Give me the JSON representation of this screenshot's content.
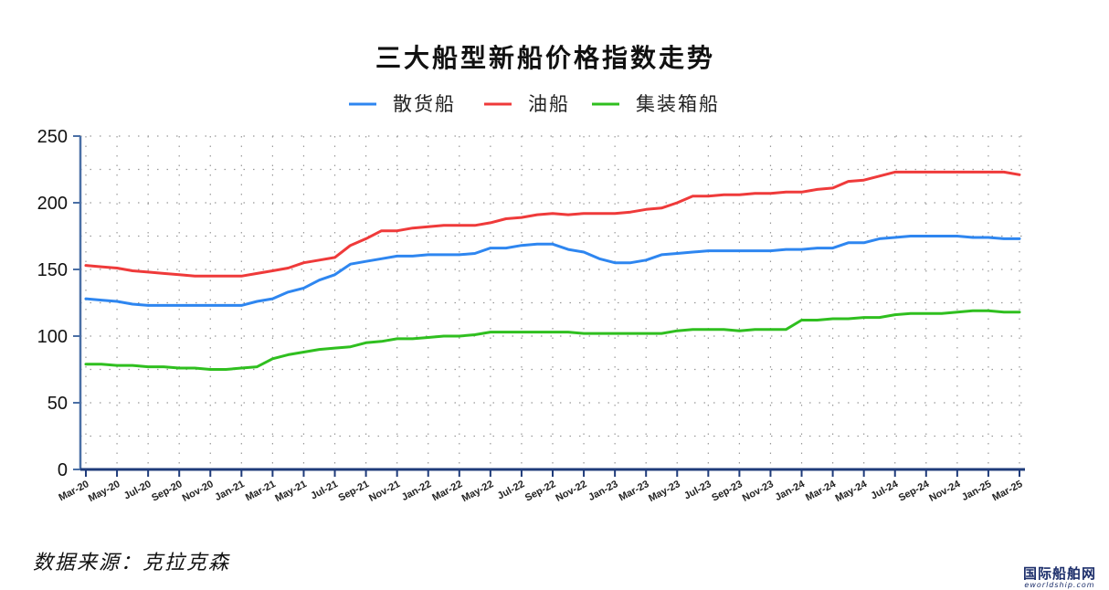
{
  "chart_data": {
    "type": "line",
    "title": "三大船型新船价格指数走势",
    "xlabel": "",
    "ylabel": "",
    "ylim": [
      0,
      250
    ],
    "yticks": [
      0,
      50,
      100,
      150,
      200,
      250
    ],
    "grid": true,
    "legend_position": "top-center",
    "x": [
      "2020-03",
      "2020-04",
      "2020-05",
      "2020-06",
      "2020-07",
      "2020-08",
      "2020-09",
      "2020-10",
      "2020-11",
      "2020-12",
      "2021-01",
      "2021-02",
      "2021-03",
      "2021-04",
      "2021-05",
      "2021-06",
      "2021-07",
      "2021-08",
      "2021-09",
      "2021-10",
      "2021-11",
      "2021-12",
      "2022-01",
      "2022-02",
      "2022-03",
      "2022-04",
      "2022-05",
      "2022-06",
      "2022-07",
      "2022-08",
      "2022-09",
      "2022-10",
      "2022-11",
      "2022-12",
      "2023-01",
      "2023-02",
      "2023-03",
      "2023-04",
      "2023-05",
      "2023-06",
      "2023-07",
      "2023-08",
      "2023-09",
      "2023-10",
      "2023-11",
      "2023-12",
      "2024-01",
      "2024-02",
      "2024-03",
      "2024-04",
      "2024-05",
      "2024-06",
      "2024-07",
      "2024-08",
      "2024-09",
      "2024-10",
      "2024-11",
      "2024-12",
      "2025-01",
      "2025-02",
      "2025-03"
    ],
    "x_tick_labels": [
      "Mar-20",
      "May-20",
      "Jul-20",
      "Sep-20",
      "Nov-20",
      "Jan-21",
      "Mar-21",
      "May-21",
      "Jul-21",
      "Sep-21",
      "Nov-21",
      "Jan-22",
      "Mar-22",
      "May-22",
      "Jul-22",
      "Sep-22",
      "Nov-22",
      "Jan-23",
      "Mar-23",
      "May-23",
      "Jul-23",
      "Sep-23",
      "Nov-23",
      "Jan-24",
      "Mar-24",
      "May-24",
      "Jul-24",
      "Sep-24",
      "Nov-24",
      "Jan-25",
      "Mar-25"
    ],
    "series": [
      {
        "name": "散货船",
        "color": "#2e86f0",
        "values": [
          128,
          127,
          126,
          124,
          123,
          123,
          123,
          123,
          123,
          123,
          123,
          126,
          128,
          133,
          136,
          142,
          146,
          154,
          156,
          158,
          160,
          160,
          161,
          161,
          161,
          162,
          166,
          166,
          168,
          169,
          169,
          165,
          163,
          158,
          155,
          155,
          157,
          161,
          162,
          163,
          164,
          164,
          164,
          164,
          164,
          165,
          165,
          166,
          166,
          170,
          170,
          173,
          174,
          175,
          175,
          175,
          175,
          174,
          174,
          173,
          173
        ]
      },
      {
        "name": "油船",
        "color": "#ef3a3a",
        "values": [
          153,
          152,
          151,
          149,
          148,
          147,
          146,
          145,
          145,
          145,
          145,
          147,
          149,
          151,
          155,
          157,
          159,
          168,
          173,
          179,
          179,
          181,
          182,
          183,
          183,
          183,
          185,
          188,
          189,
          191,
          192,
          191,
          192,
          192,
          192,
          193,
          195,
          196,
          200,
          205,
          205,
          206,
          206,
          207,
          207,
          208,
          208,
          210,
          211,
          216,
          217,
          220,
          223,
          223,
          223,
          223,
          223,
          223,
          223,
          223,
          221
        ]
      },
      {
        "name": "集装箱船",
        "color": "#2fbf1f",
        "values": [
          79,
          79,
          78,
          78,
          77,
          77,
          76,
          76,
          75,
          75,
          76,
          77,
          83,
          86,
          88,
          90,
          91,
          92,
          95,
          96,
          98,
          98,
          99,
          100,
          100,
          101,
          103,
          103,
          103,
          103,
          103,
          103,
          102,
          102,
          102,
          102,
          102,
          102,
          104,
          105,
          105,
          105,
          104,
          105,
          105,
          105,
          112,
          112,
          113,
          113,
          114,
          114,
          116,
          117,
          117,
          117,
          118,
          119,
          119,
          118,
          118
        ]
      }
    ]
  },
  "source_note": "数据来源：克拉克森",
  "watermark": {
    "main": "国际船舶网",
    "sub": "eworldship.com"
  }
}
